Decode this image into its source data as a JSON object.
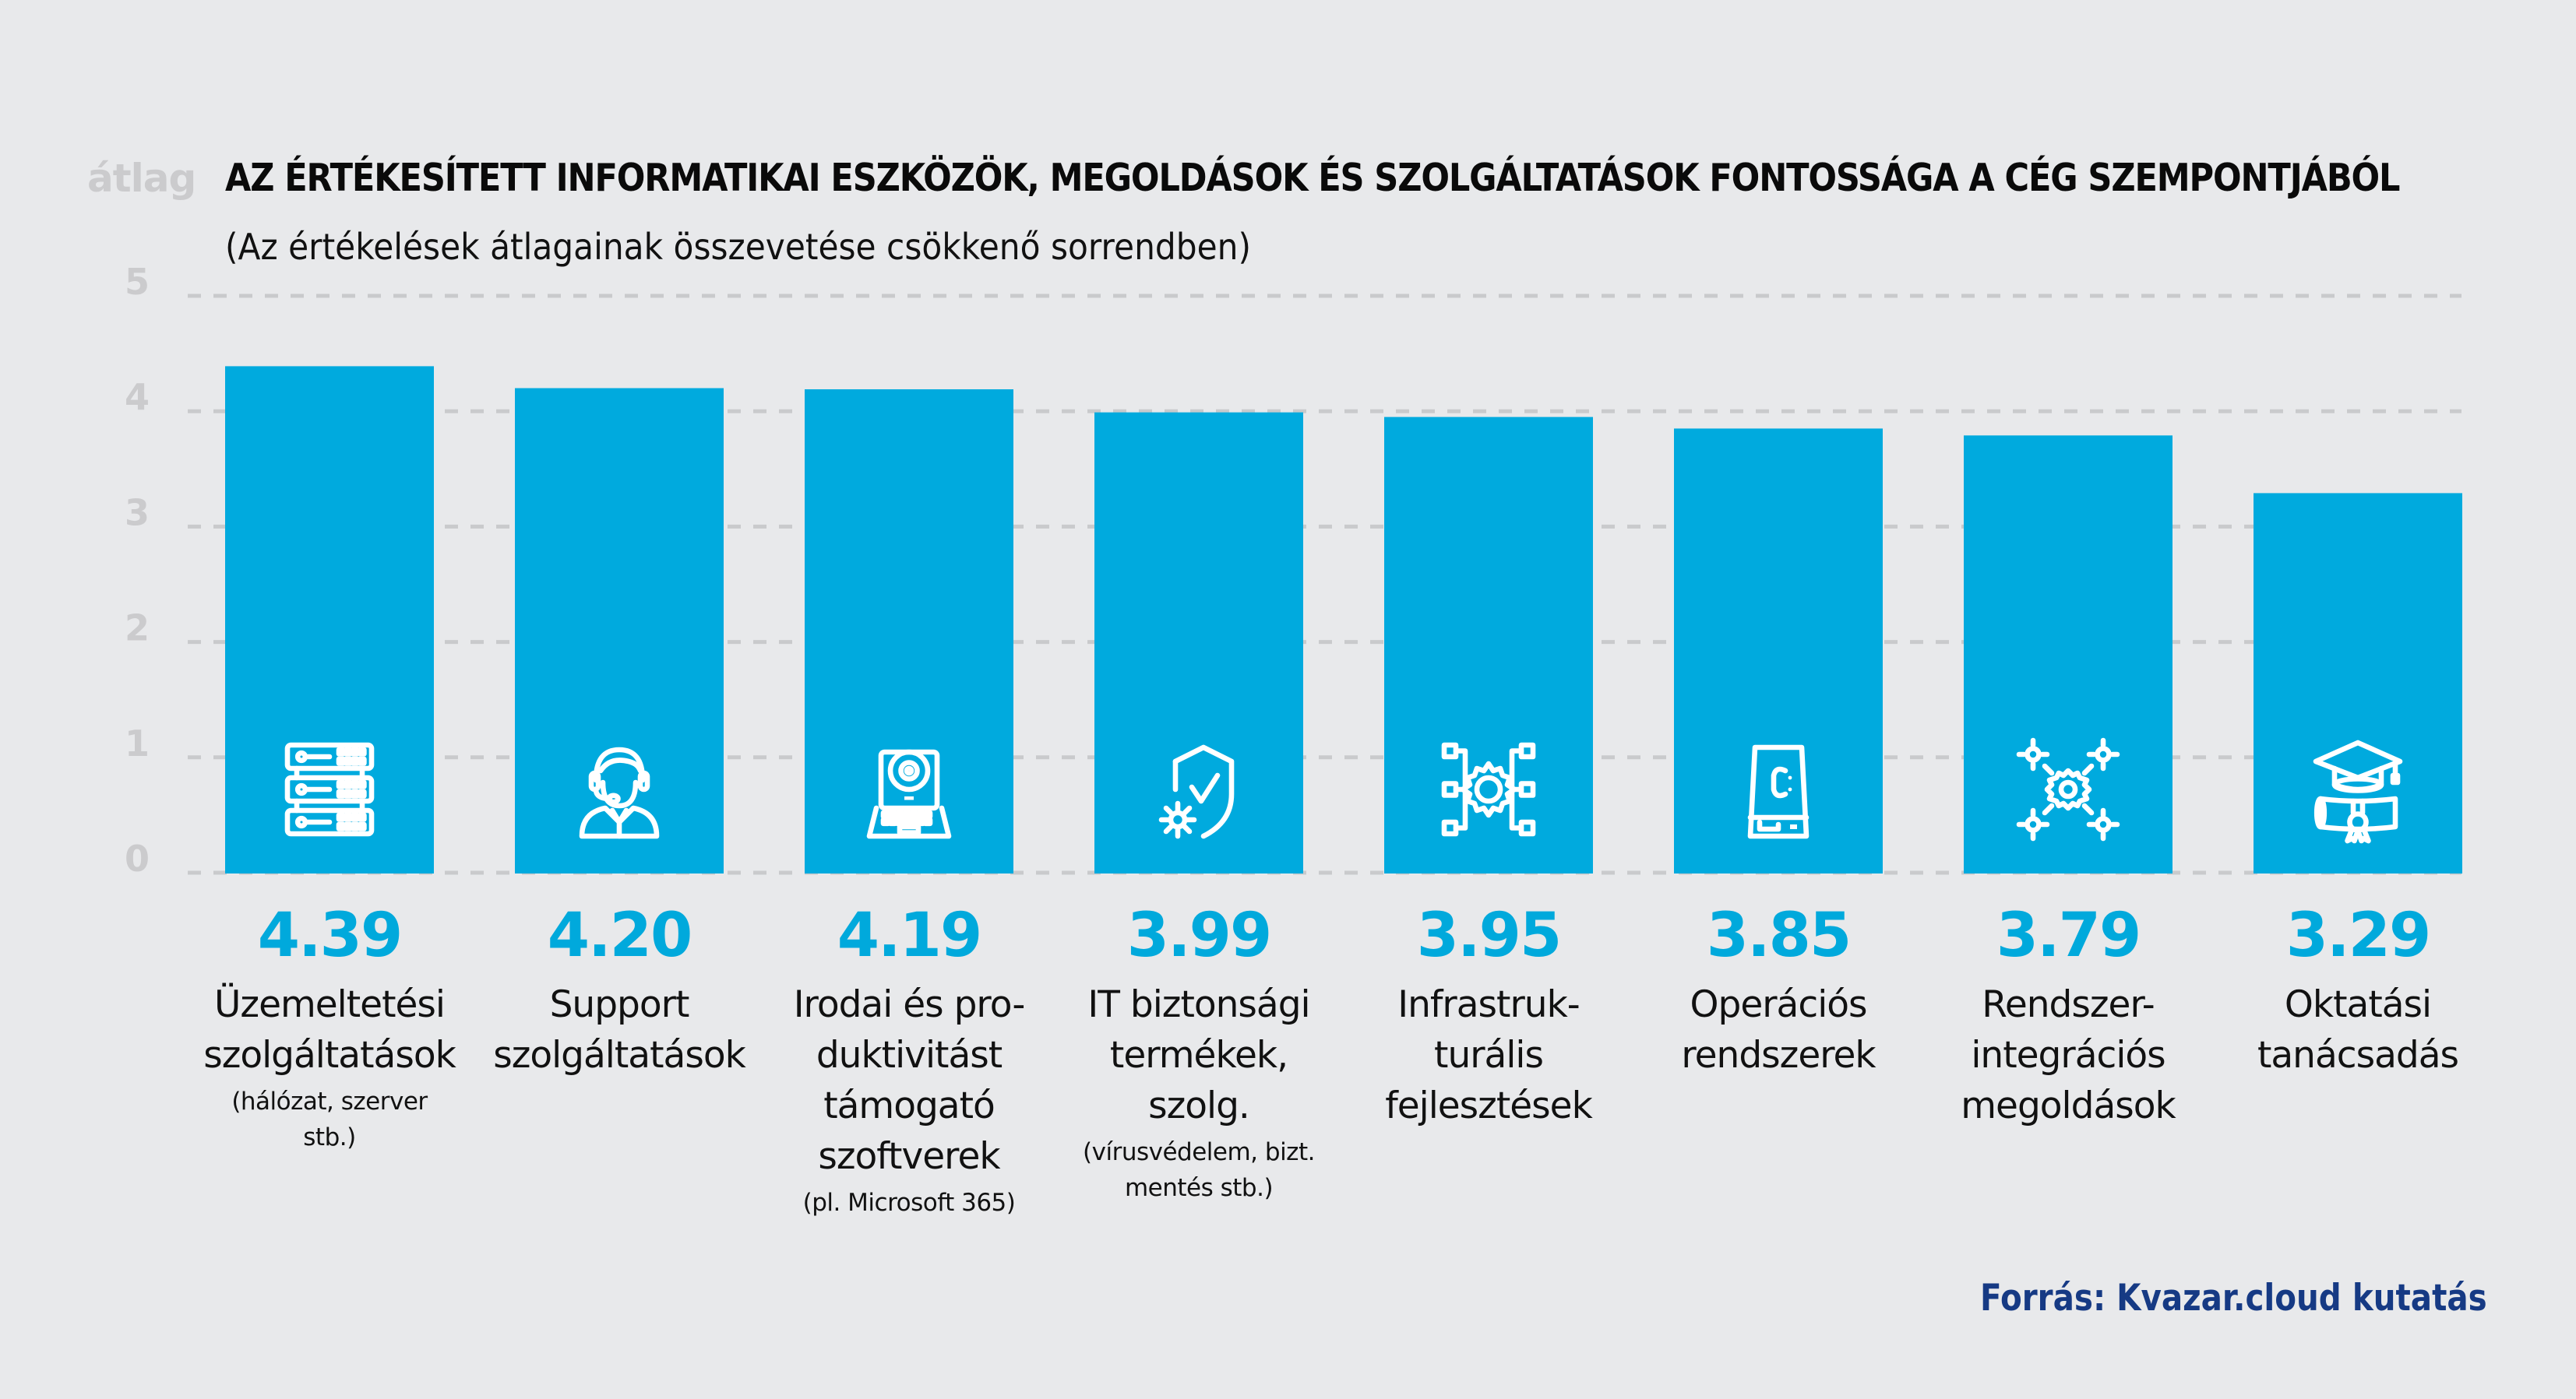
{
  "chart_data": {
    "type": "bar",
    "title": "AZ ÉRTÉKESÍTETT INFORMATIKAI ESZKÖZÖK, MEGOLDÁSOK ÉS SZOLGÁLTATÁSOK FONTOSSÁGA A CÉG SZEMPONTJÁBÓL",
    "subtitle": "(Az értékelések átlagainak összevetése csökkenő sorrendben)",
    "ylabel": "átlag",
    "xlabel": "",
    "ylim": [
      0,
      5
    ],
    "yticks": [
      "0",
      "1",
      "2",
      "3",
      "4",
      "5"
    ],
    "grid": true,
    "bar_color": "#00aade",
    "value_color": "#00a9dc",
    "categories": [
      {
        "label_lines": [
          "Üzemeltetési",
          "szolgáltatások"
        ],
        "sub_lines": [
          "(hálózat, szerver",
          "stb.)"
        ],
        "value": 4.39,
        "value_label": "4.39",
        "icon": "server-rack-icon"
      },
      {
        "label_lines": [
          "Support",
          "szolgáltatások"
        ],
        "sub_lines": [],
        "value": 4.2,
        "value_label": "4.20",
        "icon": "support-agent-headset-icon"
      },
      {
        "label_lines": [
          "Irodai és pro-",
          "duktivitást",
          "támogató",
          "szoftverek"
        ],
        "sub_lines": [
          "(pl. Microsoft 365)"
        ],
        "value": 4.19,
        "value_label": "4.19",
        "icon": "laptop-webcam-icon"
      },
      {
        "label_lines": [
          "IT biztonsági",
          "termékek,",
          "szolg."
        ],
        "sub_lines": [
          "(vírusvédelem, bizt.",
          "mentés stb.)"
        ],
        "value": 3.99,
        "value_label": "3.99",
        "icon": "shield-check-gear-icon"
      },
      {
        "label_lines": [
          "Infrastruk-",
          "turális",
          "fejlesztések"
        ],
        "sub_lines": [],
        "value": 3.95,
        "value_label": "3.95",
        "icon": "gear-network-icon"
      },
      {
        "label_lines": [
          "Operációs",
          "rendszerek"
        ],
        "sub_lines": [],
        "value": 3.85,
        "value_label": "3.85",
        "icon": "hard-drive-c-icon"
      },
      {
        "label_lines": [
          "Rendszer-",
          "integrációs",
          "megoldások"
        ],
        "sub_lines": [],
        "value": 3.79,
        "value_label": "3.79",
        "icon": "gear-integration-icon"
      },
      {
        "label_lines": [
          "Oktatási",
          "tanácsadás"
        ],
        "sub_lines": [],
        "value": 3.29,
        "value_label": "3.29",
        "icon": "graduation-cap-diploma-icon"
      }
    ]
  },
  "source": "Forrás: Kvazar.cloud kutatás"
}
